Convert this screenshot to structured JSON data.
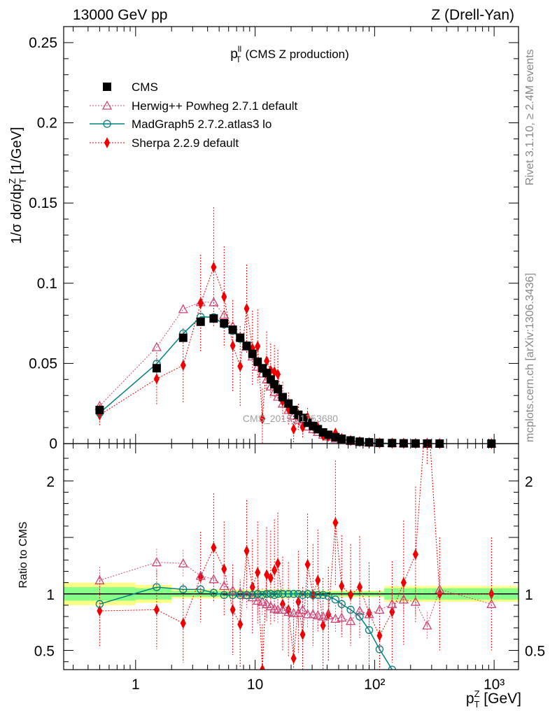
{
  "header": {
    "left": "13000 GeV pp",
    "right": "Z (Drell-Yan)"
  },
  "side": {
    "rivet": "Rivet 3.1.10, ≥ 2.4M events",
    "mcplots": "mcplots.cern.ch [arXiv:1306.3436]"
  },
  "colors": {
    "cms": "#000000",
    "herwig": "#cc4477",
    "madgraph": "#008080",
    "sherpa": "#ee0000",
    "band_inner": "#88ff88",
    "band_outer": "#ffff88"
  },
  "chart_data": {
    "type": "scatter",
    "title": "p_T^ll (CMS Z production)",
    "xlabel": "p_T^Z [GeV]",
    "ylabel": "1/σ dσ/dp_T^Z [1/GeV]",
    "ratio_ylabel": "Ratio to CMS",
    "xscale": "log",
    "xlim": [
      0.25,
      1600
    ],
    "ylim": [
      0,
      0.26
    ],
    "ratio_ylim": [
      0.33,
      2.33
    ],
    "x_ticks": [
      1,
      10,
      100,
      1000
    ],
    "x_tick_labels": [
      "1",
      "10",
      "10²",
      "10³"
    ],
    "y_ticks": [
      0,
      0.05,
      0.1,
      0.15,
      0.2,
      0.25
    ],
    "y_tick_labels": [
      "0",
      "0.05",
      "0.1",
      "0.15",
      "0.2",
      "0.25"
    ],
    "ratio_ticks": [
      0.5,
      1,
      2
    ],
    "ratio_tick_labels": [
      "0.5",
      "1",
      "2"
    ],
    "watermark": "CMS_2019_I1753680",
    "legend_position": "top-left",
    "series": [
      {
        "name": "CMS",
        "marker": "square",
        "x": [
          0.5,
          1.5,
          2.5,
          3.5,
          4.5,
          5.5,
          6.5,
          7.5,
          8.5,
          9.5,
          10.5,
          11.5,
          12.5,
          13.5,
          14.5,
          15.5,
          17,
          19,
          21,
          23,
          25,
          27.5,
          30.5,
          33.5,
          37,
          41,
          47,
          53,
          63,
          75,
          90,
          110,
          140,
          175,
          220,
          275,
          350,
          950
        ],
        "y": [
          0.021,
          0.047,
          0.066,
          0.076,
          0.078,
          0.075,
          0.071,
          0.066,
          0.061,
          0.056,
          0.051,
          0.047,
          0.044,
          0.04,
          0.037,
          0.034,
          0.029,
          0.025,
          0.021,
          0.018,
          0.016,
          0.013,
          0.011,
          0.009,
          0.007,
          0.0055,
          0.004,
          0.003,
          0.002,
          0.0012,
          0.0008,
          0.0005,
          0.0003,
          0.00018,
          0.0001,
          6e-05,
          3e-05,
          5e-06
        ]
      },
      {
        "name": "Herwig++ Powheg 2.7.1 default",
        "marker": "open-triangle",
        "x": [
          0.5,
          1.5,
          2.5,
          3.5,
          4.5,
          5.5,
          6.5,
          7.5,
          8.5,
          9.5,
          10.5,
          11.5,
          12.5,
          13.5,
          14.5,
          15.5,
          17,
          19,
          21,
          23,
          25,
          27.5,
          30.5,
          33.5,
          37,
          41,
          47,
          53,
          63,
          75,
          90,
          110,
          140,
          175,
          220,
          275,
          350,
          950
        ],
        "ratio": [
          1.12,
          1.28,
          1.27,
          1.16,
          1.13,
          1.07,
          1.03,
          1.01,
          0.99,
          0.97,
          0.94,
          0.93,
          0.91,
          0.89,
          0.87,
          0.86,
          0.86,
          0.84,
          0.83,
          0.83,
          0.86,
          0.82,
          0.82,
          0.81,
          0.8,
          0.81,
          0.78,
          0.79,
          0.76,
          0.85,
          0.82,
          0.86,
          0.91,
          0.95,
          0.93,
          0.72,
          1.04,
          0.91
        ]
      },
      {
        "name": "MadGraph5 2.7.2.atlas3 lo",
        "marker": "open-circle",
        "x": [
          0.5,
          1.5,
          2.5,
          3.5,
          4.5,
          5.5,
          6.5,
          7.5,
          8.5,
          9.5,
          10.5,
          11.5,
          12.5,
          13.5,
          14.5,
          15.5,
          17,
          19,
          21,
          23,
          25,
          27.5,
          30.5,
          33.5,
          37,
          41,
          47,
          53,
          63,
          75,
          90,
          110,
          140
        ],
        "ratio": [
          0.91,
          1.06,
          1.04,
          1.04,
          1.01,
          0.99,
          0.99,
          0.99,
          0.99,
          0.99,
          1.0,
          0.99,
          1.0,
          1.0,
          0.99,
          1.0,
          1.0,
          1.0,
          1.0,
          1.0,
          0.99,
          1.0,
          0.99,
          0.99,
          0.99,
          0.98,
          0.95,
          0.91,
          0.86,
          0.8,
          0.68,
          0.51,
          0.33
        ]
      },
      {
        "name": "Sherpa 2.2.9 default",
        "marker": "diamond",
        "x": [
          0.5,
          1.5,
          2.5,
          3.5,
          4.5,
          5.5,
          6.5,
          7.5,
          8.5,
          9.5,
          10.5,
          11.5,
          12.5,
          13.5,
          14.5,
          15.5,
          17,
          19,
          21,
          23,
          25,
          27.5,
          30.5,
          33.5,
          37,
          41,
          47,
          53,
          63,
          75,
          90,
          110,
          140,
          175,
          220,
          275,
          350,
          950
        ],
        "ratio": [
          0.85,
          0.86,
          0.74,
          1.15,
          1.41,
          1.22,
          0.86,
          0.73,
          1.38,
          1.06,
          1.19,
          0.33,
          1.17,
          1.14,
          1.21,
          1.27,
          0.91,
          0.86,
          0.43,
          0.93,
          0.64,
          1.26,
          0.99,
          1.12,
          0.72,
          0.82,
          1.63,
          1.07,
          0.99,
          1.06,
          0.83,
          0.63,
          0.84,
          1.1,
          1.35,
          2.75,
          1.0,
          1.0
        ],
        "ratio_err": [
          0.32,
          0.35,
          0.35,
          0.4,
          0.48,
          0.42,
          0.4,
          0.38,
          0.45,
          0.42,
          0.45,
          0.4,
          0.42,
          0.42,
          0.45,
          0.45,
          0.42,
          0.42,
          0.4,
          0.45,
          0.42,
          0.45,
          0.45,
          0.45,
          0.42,
          0.42,
          0.55,
          0.45,
          0.45,
          0.45,
          0.45,
          0.4,
          0.45,
          0.55,
          0.6,
          0.6,
          0.5,
          0.5
        ]
      }
    ]
  }
}
